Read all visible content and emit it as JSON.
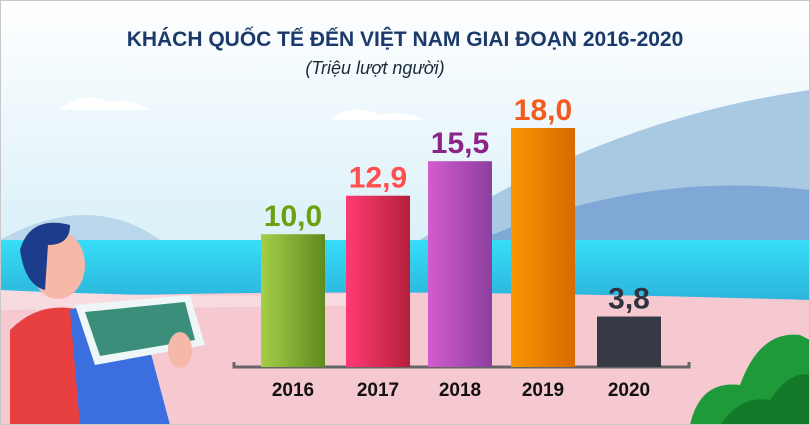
{
  "chart_data": {
    "type": "bar",
    "title": "KHÁCH QUỐC TẾ ĐẾN VIỆT NAM GIAI ĐOẠN 2016-2020",
    "subtitle": "(Triệu lượt người)",
    "categories": [
      "2016",
      "2017",
      "2018",
      "2019",
      "2020"
    ],
    "values": [
      10.0,
      12.9,
      15.5,
      18.0,
      3.8
    ],
    "data_labels": [
      "10,0",
      "12,9",
      "15,5",
      "18,0",
      "3,8"
    ],
    "bar_colors": [
      [
        "#a4cf48",
        "#5f8a1f"
      ],
      [
        "#ff3b74",
        "#b51f3a"
      ],
      [
        "#d35ccf",
        "#8c3f9e"
      ],
      [
        "#f99500",
        "#d96a00"
      ],
      [
        "#363a45",
        "#363a45"
      ]
    ],
    "label_colors": [
      "#6aa10f",
      "#ff4f4f",
      "#8a2487",
      "#f25b1c",
      "#2f3340"
    ],
    "xlabel": "",
    "ylabel": "",
    "ylim": [
      0,
      18
    ],
    "grid": false,
    "legend": "none"
  }
}
